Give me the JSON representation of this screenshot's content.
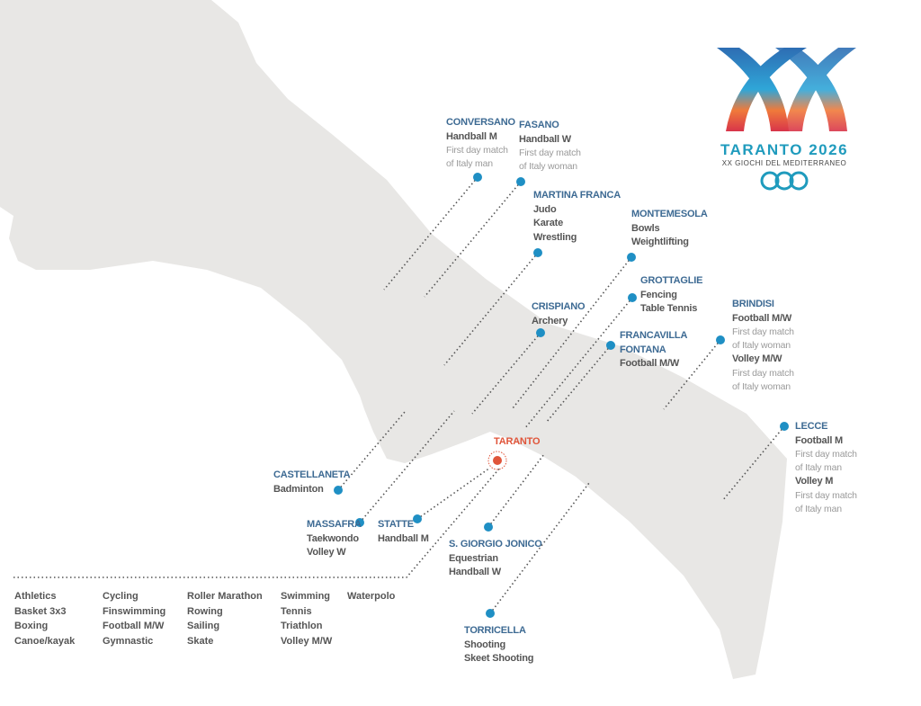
{
  "colors": {
    "land": "#e8e7e5",
    "city": "#3d6a93",
    "dot": "#1f8fc4",
    "host": "#e0553a",
    "note": "#9a9a9a"
  },
  "logo": {
    "numeral": "XX",
    "title": "TARANTO 2026",
    "subtitle": "XX GIOCHI DEL MEDITERRANEO"
  },
  "venues": [
    {
      "city": "CONVERSANO",
      "sports": [
        "Handball M"
      ],
      "notes": [
        "First day match",
        "of Italy man"
      ]
    },
    {
      "city": "FASANO",
      "sports": [
        "Handball W"
      ],
      "notes": [
        "First day match",
        "of Italy woman"
      ]
    },
    {
      "city": "MARTINA FRANCA",
      "sports": [
        "Judo",
        "Karate",
        "Wrestling"
      ]
    },
    {
      "city": "MONTEMESOLA",
      "sports": [
        "Bowls",
        "Weightlifting"
      ]
    },
    {
      "city": "GROTTAGLIE",
      "sports": [
        "Fencing",
        "Table Tennis"
      ]
    },
    {
      "city": "CRISPIANO",
      "sports": [
        "Archery"
      ]
    },
    {
      "city": "FRANCAVILLA FONTANA",
      "sports": [
        "Football M/W"
      ]
    },
    {
      "city": "BRINDISI",
      "sports": [
        "Football M/W"
      ],
      "notes": [
        "First day match",
        "of Italy woman"
      ],
      "sports2": [
        "Volley M/W"
      ],
      "notes2": [
        "First day match",
        "of Italy woman"
      ]
    },
    {
      "city": "LECCE",
      "sports": [
        "Football M"
      ],
      "notes": [
        "First day match",
        "of Italy man"
      ],
      "sports2": [
        "Volley M"
      ],
      "notes2": [
        "First day match",
        "of Italy man"
      ]
    },
    {
      "city": "TARANTO"
    },
    {
      "city": "CASTELLANETA",
      "sports": [
        "Badminton"
      ]
    },
    {
      "city": "MASSAFRA",
      "sports": [
        "Taekwondo",
        "Volley W"
      ]
    },
    {
      "city": "STATTE",
      "sports": [
        "Handball M"
      ]
    },
    {
      "city": "S. GIORGIO JONICO",
      "sports": [
        "Equestrian",
        "Handball W"
      ]
    },
    {
      "city": "TORRICELLA",
      "sports": [
        "Shooting",
        "Skeet Shooting"
      ]
    }
  ],
  "taranto_sports": [
    [
      "Athletics",
      "Basket 3x3",
      "Boxing",
      "Canoe/kayak"
    ],
    [
      "Cycling",
      "Finswimming",
      "Football M/W",
      "Gymnastic"
    ],
    [
      "Roller Marathon",
      "Rowing",
      "Sailing",
      "Skate"
    ],
    [
      "Swimming",
      "Tennis",
      "Triathlon",
      "Volley M/W"
    ],
    [
      "Waterpolo"
    ]
  ]
}
